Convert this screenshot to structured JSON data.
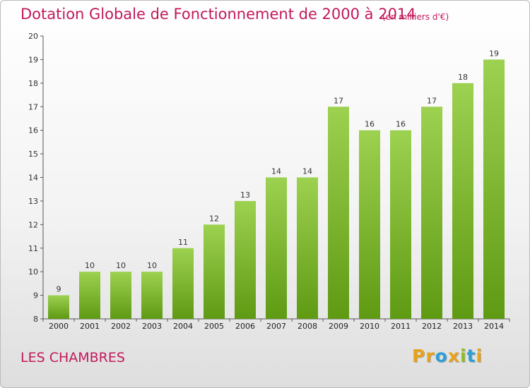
{
  "title": "Dotation Globale de Fonctionnement de 2000 à 2014",
  "subtitle": "(en milliers d'€)",
  "commune": "LES CHAMBRES",
  "logo": {
    "letters": [
      "P",
      "r",
      "o",
      "x",
      "i",
      "t",
      "i"
    ],
    "colors": [
      "#e8a21a",
      "#e8a21a",
      "#2e9fd6",
      "#e8a21a",
      "#8fbf1f",
      "#2e9fd6",
      "#e8a21a"
    ]
  },
  "colors": {
    "bar_top": "#9dd150",
    "bar_bottom": "#5f9a13",
    "title": "#c2185b"
  },
  "chart_data": {
    "type": "bar",
    "title": "Dotation Globale de Fonctionnement de 2000 à 2014",
    "subtitle": "(en milliers d'€)",
    "categories": [
      "2000",
      "2001",
      "2002",
      "2003",
      "2004",
      "2005",
      "2006",
      "2007",
      "2008",
      "2009",
      "2010",
      "2011",
      "2012",
      "2013",
      "2014"
    ],
    "values": [
      9,
      10,
      10,
      10,
      11,
      12,
      13,
      14,
      14,
      17,
      16,
      16,
      17,
      18,
      19
    ],
    "ylim": [
      8,
      20
    ],
    "yticks": [
      8,
      9,
      10,
      11,
      12,
      13,
      14,
      15,
      16,
      17,
      18,
      19,
      20
    ],
    "grid": false,
    "data_labels": true
  }
}
